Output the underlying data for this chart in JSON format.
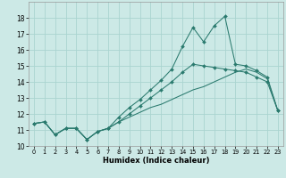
{
  "xlabel": "Humidex (Indice chaleur)",
  "xlim": [
    -0.5,
    23.5
  ],
  "ylim": [
    10,
    19
  ],
  "yticks": [
    10,
    11,
    12,
    13,
    14,
    15,
    16,
    17,
    18
  ],
  "xticks": [
    0,
    1,
    2,
    3,
    4,
    5,
    6,
    7,
    8,
    9,
    10,
    11,
    12,
    13,
    14,
    15,
    16,
    17,
    18,
    19,
    20,
    21,
    22,
    23
  ],
  "bg_color": "#cce9e6",
  "grid_color": "#aad4d0",
  "line_color": "#2a7a6e",
  "line_jagged_x": [
    0,
    1,
    2,
    3,
    4,
    5,
    6,
    7,
    8,
    9,
    10,
    11,
    12,
    13,
    14,
    15,
    16,
    17,
    18,
    19,
    20,
    21,
    22,
    23
  ],
  "line_jagged_y": [
    11.4,
    11.5,
    10.7,
    11.1,
    11.1,
    10.4,
    10.9,
    11.1,
    11.8,
    12.4,
    12.9,
    13.5,
    14.1,
    14.8,
    16.2,
    17.4,
    16.5,
    17.5,
    18.1,
    15.1,
    15.0,
    14.7,
    14.3,
    12.2
  ],
  "line_mid_x": [
    0,
    1,
    2,
    3,
    4,
    5,
    6,
    7,
    8,
    9,
    10,
    11,
    12,
    13,
    14,
    15,
    16,
    17,
    18,
    19,
    20,
    21,
    22,
    23
  ],
  "line_mid_y": [
    11.4,
    11.5,
    10.7,
    11.1,
    11.1,
    10.4,
    10.9,
    11.1,
    11.5,
    12.0,
    12.5,
    13.0,
    13.5,
    14.0,
    14.6,
    15.1,
    15.0,
    14.9,
    14.8,
    14.7,
    14.6,
    14.3,
    14.0,
    12.2
  ],
  "line_base_x": [
    0,
    1,
    2,
    3,
    4,
    5,
    6,
    7,
    8,
    9,
    10,
    11,
    12,
    13,
    14,
    15,
    16,
    17,
    18,
    19,
    20,
    21,
    22,
    23
  ],
  "line_base_y": [
    11.4,
    11.5,
    10.7,
    11.1,
    11.1,
    10.4,
    10.9,
    11.1,
    11.5,
    11.8,
    12.1,
    12.4,
    12.6,
    12.9,
    13.2,
    13.5,
    13.7,
    14.0,
    14.3,
    14.6,
    14.8,
    14.6,
    14.2,
    12.2
  ]
}
